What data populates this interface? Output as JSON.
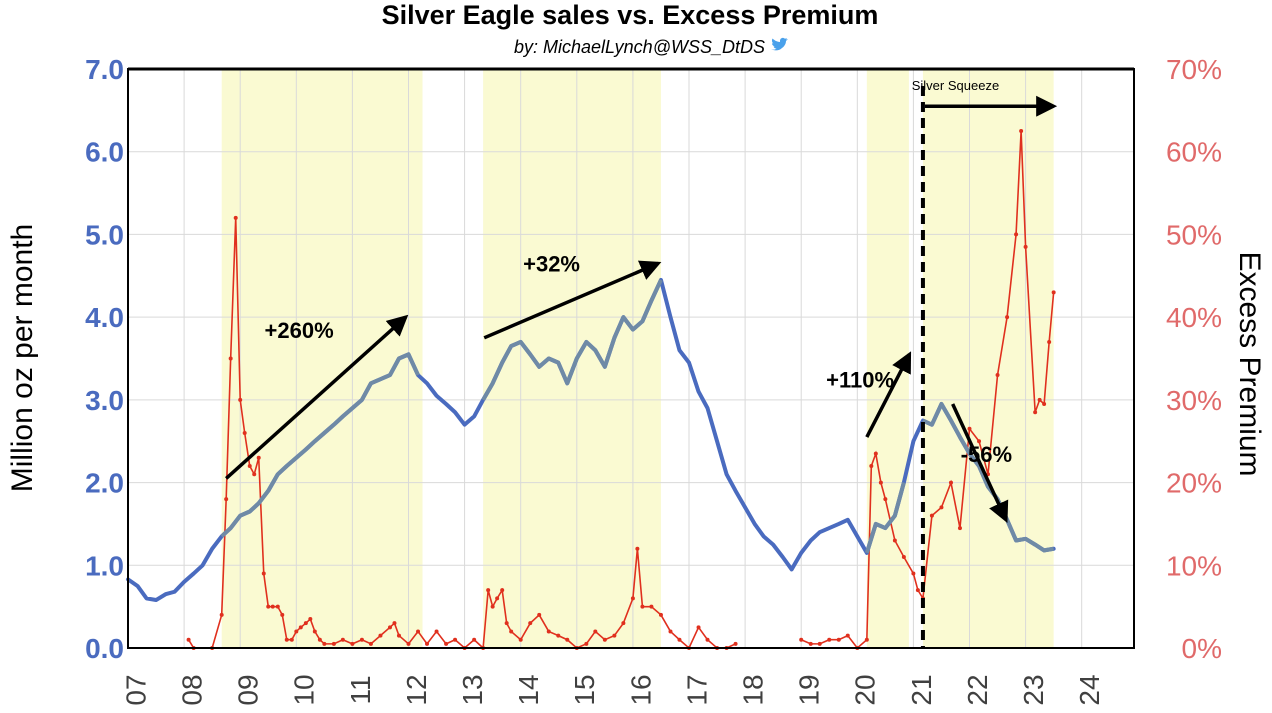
{
  "chart_data": {
    "type": "line",
    "title": "Silver Eagle sales vs. Excess Premium",
    "subtitle": "by: MichaelLynch@WSS_DtDS",
    "subtitle_icon": "twitter-bird-icon",
    "ylabel_left": "Million oz per month",
    "ylabel_right": "Excess Premium",
    "y_left_lim": [
      0,
      7
    ],
    "y_left_ticks": [
      "0.0",
      "1.0",
      "2.0",
      "3.0",
      "4.0",
      "5.0",
      "6.0",
      "7.0"
    ],
    "y_right_lim": [
      0,
      70
    ],
    "y_right_ticks": [
      "0%",
      "10%",
      "20%",
      "30%",
      "40%",
      "50%",
      "60%",
      "70%"
    ],
    "x_lim": [
      2007,
      2025
    ],
    "x_ticks": [
      "07",
      "08",
      "09",
      "10",
      "11",
      "12",
      "13",
      "14",
      "15",
      "16",
      "17",
      "18",
      "19",
      "20",
      "21",
      "22",
      "23",
      "24"
    ],
    "grid": true,
    "colors": {
      "sales": "#4a6bbf",
      "premium": "#e0301e",
      "highlight": "#fafad2",
      "left_axis_text": "#4a6bbf",
      "right_axis_text": "#e06a6a"
    },
    "highlight_regions": [
      [
        2008.67,
        2012.25
      ],
      [
        2013.33,
        2016.5
      ],
      [
        2020.17,
        2020.92
      ],
      [
        2021.17,
        2023.5
      ]
    ],
    "series": [
      {
        "axis": "left",
        "points": [
          [
            2007.0,
            0.83
          ],
          [
            2007.17,
            0.75
          ],
          [
            2007.33,
            0.6
          ],
          [
            2007.5,
            0.58
          ],
          [
            2007.67,
            0.65
          ],
          [
            2007.83,
            0.68
          ],
          [
            2008.0,
            0.8
          ],
          [
            2008.17,
            0.9
          ],
          [
            2008.33,
            1.0
          ],
          [
            2008.5,
            1.2
          ],
          [
            2008.67,
            1.35
          ],
          [
            2008.83,
            1.45
          ],
          [
            2009.0,
            1.6
          ],
          [
            2009.17,
            1.65
          ],
          [
            2009.33,
            1.75
          ],
          [
            2009.5,
            1.9
          ],
          [
            2009.67,
            2.1
          ],
          [
            2009.83,
            2.2
          ],
          [
            2010.0,
            2.3
          ],
          [
            2010.17,
            2.4
          ],
          [
            2010.33,
            2.5
          ],
          [
            2010.5,
            2.6
          ],
          [
            2010.67,
            2.7
          ],
          [
            2010.83,
            2.8
          ],
          [
            2011.0,
            2.9
          ],
          [
            2011.17,
            3.0
          ],
          [
            2011.33,
            3.2
          ],
          [
            2011.5,
            3.25
          ],
          [
            2011.67,
            3.3
          ],
          [
            2011.83,
            3.5
          ],
          [
            2012.0,
            3.55
          ],
          [
            2012.17,
            3.3
          ],
          [
            2012.33,
            3.2
          ],
          [
            2012.5,
            3.05
          ],
          [
            2012.67,
            2.95
          ],
          [
            2012.83,
            2.85
          ],
          [
            2013.0,
            2.7
          ],
          [
            2013.17,
            2.8
          ],
          [
            2013.33,
            3.0
          ],
          [
            2013.5,
            3.2
          ],
          [
            2013.67,
            3.45
          ],
          [
            2013.83,
            3.65
          ],
          [
            2014.0,
            3.7
          ],
          [
            2014.17,
            3.55
          ],
          [
            2014.33,
            3.4
          ],
          [
            2014.5,
            3.5
          ],
          [
            2014.67,
            3.45
          ],
          [
            2014.83,
            3.2
          ],
          [
            2015.0,
            3.5
          ],
          [
            2015.17,
            3.7
          ],
          [
            2015.33,
            3.6
          ],
          [
            2015.5,
            3.4
          ],
          [
            2015.67,
            3.75
          ],
          [
            2015.83,
            4.0
          ],
          [
            2016.0,
            3.85
          ],
          [
            2016.17,
            3.95
          ],
          [
            2016.33,
            4.2
          ],
          [
            2016.5,
            4.45
          ],
          [
            2016.67,
            4.0
          ],
          [
            2016.83,
            3.6
          ],
          [
            2017.0,
            3.45
          ],
          [
            2017.17,
            3.1
          ],
          [
            2017.33,
            2.9
          ],
          [
            2017.5,
            2.5
          ],
          [
            2017.67,
            2.1
          ],
          [
            2017.83,
            1.9
          ],
          [
            2018.0,
            1.7
          ],
          [
            2018.17,
            1.5
          ],
          [
            2018.33,
            1.35
          ],
          [
            2018.5,
            1.25
          ],
          [
            2018.67,
            1.1
          ],
          [
            2018.83,
            0.95
          ],
          [
            2019.0,
            1.15
          ],
          [
            2019.17,
            1.3
          ],
          [
            2019.33,
            1.4
          ],
          [
            2019.5,
            1.45
          ],
          [
            2019.67,
            1.5
          ],
          [
            2019.83,
            1.55
          ],
          [
            2020.0,
            1.35
          ],
          [
            2020.17,
            1.15
          ],
          [
            2020.33,
            1.5
          ],
          [
            2020.5,
            1.45
          ],
          [
            2020.67,
            1.6
          ],
          [
            2020.83,
            2.0
          ],
          [
            2021.0,
            2.5
          ],
          [
            2021.17,
            2.75
          ],
          [
            2021.33,
            2.7
          ],
          [
            2021.5,
            2.95
          ],
          [
            2021.67,
            2.75
          ],
          [
            2021.83,
            2.55
          ],
          [
            2022.0,
            2.35
          ],
          [
            2022.17,
            2.2
          ],
          [
            2022.33,
            1.95
          ],
          [
            2022.5,
            1.8
          ],
          [
            2022.67,
            1.55
          ],
          [
            2022.83,
            1.3
          ],
          [
            2023.0,
            1.32
          ],
          [
            2023.17,
            1.25
          ],
          [
            2023.33,
            1.18
          ],
          [
            2023.5,
            1.2
          ]
        ]
      },
      {
        "axis": "right",
        "points": [
          [
            2008.08,
            1
          ],
          [
            2008.17,
            0
          ],
          [
            2008.5,
            0
          ],
          [
            2008.67,
            4
          ],
          [
            2008.75,
            18
          ],
          [
            2008.83,
            35
          ],
          [
            2008.92,
            52
          ],
          [
            2009.0,
            30
          ],
          [
            2009.08,
            26
          ],
          [
            2009.17,
            22
          ],
          [
            2009.25,
            21
          ],
          [
            2009.33,
            23
          ],
          [
            2009.42,
            9
          ],
          [
            2009.5,
            5
          ],
          [
            2009.58,
            5
          ],
          [
            2009.67,
            5
          ],
          [
            2009.75,
            4
          ],
          [
            2009.83,
            1
          ],
          [
            2009.92,
            1
          ],
          [
            2010.0,
            2
          ],
          [
            2010.08,
            2.5
          ],
          [
            2010.17,
            3
          ],
          [
            2010.25,
            3.5
          ],
          [
            2010.33,
            2
          ],
          [
            2010.42,
            1
          ],
          [
            2010.5,
            0.5
          ],
          [
            2010.67,
            0.5
          ],
          [
            2010.83,
            1
          ],
          [
            2011.0,
            0.5
          ],
          [
            2011.17,
            1
          ],
          [
            2011.33,
            0.5
          ],
          [
            2011.5,
            1.5
          ],
          [
            2011.67,
            2.5
          ],
          [
            2011.75,
            3
          ],
          [
            2011.83,
            1.5
          ],
          [
            2012.0,
            0.5
          ],
          [
            2012.17,
            2
          ],
          [
            2012.33,
            0.5
          ],
          [
            2012.5,
            2
          ],
          [
            2012.67,
            0.5
          ],
          [
            2012.83,
            1
          ],
          [
            2013.0,
            0
          ],
          [
            2013.17,
            1
          ],
          [
            2013.33,
            0
          ],
          [
            2013.42,
            7
          ],
          [
            2013.5,
            5
          ],
          [
            2013.58,
            6
          ],
          [
            2013.67,
            7
          ],
          [
            2013.75,
            3
          ],
          [
            2013.83,
            2
          ],
          [
            2014.0,
            1
          ],
          [
            2014.17,
            3
          ],
          [
            2014.33,
            4
          ],
          [
            2014.5,
            2
          ],
          [
            2014.67,
            1.5
          ],
          [
            2014.83,
            1
          ],
          [
            2015.0,
            0
          ],
          [
            2015.17,
            0.5
          ],
          [
            2015.33,
            2
          ],
          [
            2015.5,
            1
          ],
          [
            2015.67,
            1.5
          ],
          [
            2015.83,
            3
          ],
          [
            2016.0,
            6
          ],
          [
            2016.08,
            12
          ],
          [
            2016.17,
            5
          ],
          [
            2016.33,
            5
          ],
          [
            2016.5,
            4
          ],
          [
            2016.67,
            2
          ],
          [
            2016.83,
            1
          ],
          [
            2017.0,
            0
          ],
          [
            2017.17,
            2.5
          ],
          [
            2017.33,
            1
          ],
          [
            2017.5,
            0
          ],
          [
            2017.67,
            0
          ],
          [
            2017.83,
            0.5
          ],
          [
            2019.0,
            1
          ],
          [
            2019.17,
            0.5
          ],
          [
            2019.33,
            0.5
          ],
          [
            2019.5,
            1
          ],
          [
            2019.67,
            1
          ],
          [
            2019.83,
            1.5
          ],
          [
            2020.0,
            0
          ],
          [
            2020.17,
            1
          ],
          [
            2020.25,
            22
          ],
          [
            2020.33,
            23.5
          ],
          [
            2020.42,
            20
          ],
          [
            2020.5,
            18
          ],
          [
            2020.67,
            13
          ],
          [
            2020.83,
            11
          ],
          [
            2021.0,
            9
          ],
          [
            2021.08,
            7
          ],
          [
            2021.17,
            6
          ],
          [
            2021.33,
            16
          ],
          [
            2021.5,
            17
          ],
          [
            2021.67,
            20
          ],
          [
            2021.83,
            14.5
          ],
          [
            2022.0,
            26.5
          ],
          [
            2022.17,
            25
          ],
          [
            2022.33,
            21
          ],
          [
            2022.5,
            33
          ],
          [
            2022.67,
            40
          ],
          [
            2022.83,
            50
          ],
          [
            2022.92,
            62.5
          ],
          [
            2023.0,
            48.5
          ],
          [
            2023.17,
            28.5
          ],
          [
            2023.25,
            30
          ],
          [
            2023.33,
            29.5
          ],
          [
            2023.42,
            37
          ],
          [
            2023.5,
            43
          ]
        ]
      }
    ],
    "annotations": [
      {
        "text": "+260%",
        "x": 2010.05,
        "y": 3.75,
        "from": [
          2008.75,
          2.05
        ],
        "to": [
          2011.95,
          4.0
        ]
      },
      {
        "text": "+32%",
        "x": 2014.55,
        "y": 4.55,
        "from": [
          2013.35,
          3.75
        ],
        "to": [
          2016.45,
          4.65
        ]
      },
      {
        "text": "+110%",
        "x": 2020.05,
        "y": 3.15,
        "from": [
          2020.17,
          2.55
        ],
        "to": [
          2020.93,
          3.55
        ]
      },
      {
        "text": "-56%",
        "x": 2022.3,
        "y": 2.25,
        "from": [
          2021.7,
          2.95
        ],
        "to": [
          2022.65,
          1.55
        ]
      }
    ],
    "event_line": {
      "x": 2021.17,
      "label": "Silver Squeeze",
      "arrow_to": 2023.5,
      "label_x": 2021.75,
      "arrow_y": 6.55
    }
  }
}
